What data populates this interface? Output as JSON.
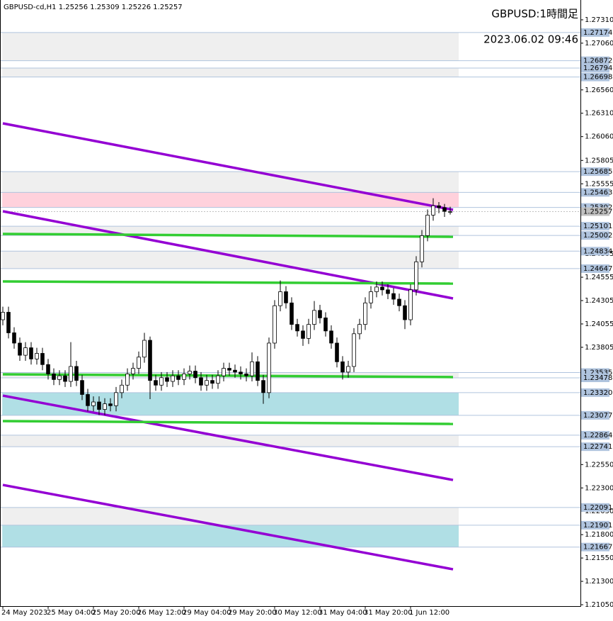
{
  "chart_data": {
    "type": "candlestick",
    "title": "GBPUSD-cd,H1  1.25256 1.25309 1.25226 1.25257",
    "annotations": [
      "GBPUSD:1時間足",
      "2023.06.02 09:46"
    ],
    "xlim": [
      -0.5,
      102
    ],
    "ylim": [
      1.21035,
      1.27522
    ],
    "xticks": [
      {
        "value": 0,
        "label": "24 May 2023"
      },
      {
        "value": 8,
        "label": "25 May 04:00"
      },
      {
        "value": 16,
        "label": "25 May 20:00"
      },
      {
        "value": 24,
        "label": "26 May 12:00"
      },
      {
        "value": 32,
        "label": "29 May 04:00"
      },
      {
        "value": 40,
        "label": "29 May 20:00"
      },
      {
        "value": 48,
        "label": "30 May 12:00"
      },
      {
        "value": 56,
        "label": "31 May 04:00"
      },
      {
        "value": 64,
        "label": "31 May 20:00"
      },
      {
        "value": 72,
        "label": "1 Jun 12:00"
      }
    ],
    "yticks": [
      {
        "value": 1.2731,
        "label": "1.27310"
      },
      {
        "value": 1.2706,
        "label": "1.27060"
      },
      {
        "value": 1.2656,
        "label": "1.26560"
      },
      {
        "value": 1.2631,
        "label": "1.26310"
      },
      {
        "value": 1.2606,
        "label": "1.26060"
      },
      {
        "value": 1.25805,
        "label": "1.25805"
      },
      {
        "value": 1.25555,
        "label": "1.25555"
      },
      {
        "value": 1.24805,
        "label": "1.24805"
      },
      {
        "value": 1.24555,
        "label": "1.24555"
      },
      {
        "value": 1.24305,
        "label": "1.24305"
      },
      {
        "value": 1.24055,
        "label": "1.24055"
      },
      {
        "value": 1.23805,
        "label": "1.23805"
      },
      {
        "value": 1.2255,
        "label": "1.22550"
      },
      {
        "value": 1.223,
        "label": "1.22300"
      },
      {
        "value": 1.2205,
        "label": "1.22050"
      },
      {
        "value": 1.218,
        "label": "1.21800"
      },
      {
        "value": 1.2155,
        "label": "1.21550"
      },
      {
        "value": 1.213,
        "label": "1.21300"
      },
      {
        "value": 1.2105,
        "label": "1.21050"
      }
    ],
    "levels": [
      {
        "value": 1.27174,
        "label": "1.27174"
      },
      {
        "value": 1.26872,
        "label": "1.26872"
      },
      {
        "value": 1.26794,
        "label": "1.26794"
      },
      {
        "value": 1.26698,
        "label": "1.26698"
      },
      {
        "value": 1.25685,
        "label": "1.25685"
      },
      {
        "value": 1.25463,
        "label": "1.25463"
      },
      {
        "value": 1.25302,
        "label": "1.25302"
      },
      {
        "value": 1.25101,
        "label": "1.25101"
      },
      {
        "value": 1.25002,
        "label": "1.25002"
      },
      {
        "value": 1.24834,
        "label": "1.24834"
      },
      {
        "value": 1.24647,
        "label": "1.24647"
      },
      {
        "value": 1.23535,
        "label": "1.23535"
      },
      {
        "value": 1.23478,
        "label": "1.23478"
      },
      {
        "value": 1.2332,
        "label": "1.23320"
      },
      {
        "value": 1.23077,
        "label": "1.23077"
      },
      {
        "value": 1.22864,
        "label": "1.22864"
      },
      {
        "value": 1.22741,
        "label": "1.22741"
      },
      {
        "value": 1.22091,
        "label": "1.22091"
      },
      {
        "value": 1.21901,
        "label": "1.21901"
      },
      {
        "value": 1.21667,
        "label": "1.21667"
      }
    ],
    "price": {
      "value": 1.25257,
      "label": "1.25257"
    },
    "zones": [
      {
        "from": 1.27174,
        "to": 1.26872,
        "color": "#efefef"
      },
      {
        "from": 1.26794,
        "to": 1.26698,
        "color": "#efefef"
      },
      {
        "from": 1.25685,
        "to": 1.25463,
        "color": "#efefef"
      },
      {
        "from": 1.25463,
        "to": 1.25302,
        "color": "#ffd1dc"
      },
      {
        "from": 1.25101,
        "to": 1.25002,
        "color": "#efefef"
      },
      {
        "from": 1.24834,
        "to": 1.24647,
        "color": "#efefef"
      },
      {
        "from": 1.23535,
        "to": 1.23478,
        "color": "#efefef"
      },
      {
        "from": 1.2332,
        "to": 1.23077,
        "color": "#b0dfe5"
      },
      {
        "from": 1.22864,
        "to": 1.22741,
        "color": "#efefef"
      },
      {
        "from": 1.22091,
        "to": 1.21901,
        "color": "#efefef"
      },
      {
        "from": 1.21901,
        "to": 1.21667,
        "color": "#b0dfe5"
      }
    ],
    "trendlines": [
      {
        "color": "#9400d3",
        "x": [
          0,
          79.5
        ],
        "y": [
          1.26202,
          1.25276
        ]
      },
      {
        "color": "#9400d3",
        "x": [
          0,
          79.5
        ],
        "y": [
          1.25261,
          1.24328
        ]
      },
      {
        "color": "#9400d3",
        "x": [
          0,
          79.5
        ],
        "y": [
          1.23288,
          1.22385
        ]
      },
      {
        "color": "#9400d3",
        "x": [
          0,
          79.5
        ],
        "y": [
          1.22332,
          1.21429
        ]
      },
      {
        "color": "#32cd32",
        "x": [
          0,
          79.5
        ],
        "y": [
          1.25018,
          1.24988
        ]
      },
      {
        "color": "#32cd32",
        "x": [
          0,
          79.5
        ],
        "y": [
          1.2451,
          1.24487
        ]
      },
      {
        "color": "#32cd32",
        "x": [
          0,
          79.5
        ],
        "y": [
          1.23516,
          1.23486
        ]
      },
      {
        "color": "#32cd32",
        "x": [
          0,
          79.5
        ],
        "y": [
          1.23015,
          1.22985
        ]
      }
    ],
    "candles": [
      [
        1.241,
        1.2424,
        1.2404,
        1.2418
      ],
      [
        1.2418,
        1.2424,
        1.239,
        1.2396
      ],
      [
        1.2396,
        1.2402,
        1.2379,
        1.2385
      ],
      [
        1.2385,
        1.2391,
        1.2366,
        1.2372
      ],
      [
        1.2372,
        1.2386,
        1.2366,
        1.238
      ],
      [
        1.238,
        1.2386,
        1.2362,
        1.2368
      ],
      [
        1.2368,
        1.238,
        1.2362,
        1.2374
      ],
      [
        1.2374,
        1.238,
        1.2356,
        1.2362
      ],
      [
        1.2362,
        1.2368,
        1.2346,
        1.2352
      ],
      [
        1.2352,
        1.2358,
        1.234,
        1.2346
      ],
      [
        1.2346,
        1.2356,
        1.234,
        1.235
      ],
      [
        1.235,
        1.2356,
        1.2338,
        1.2344
      ],
      [
        1.2344,
        1.2386,
        1.2338,
        1.236
      ],
      [
        1.236,
        1.2366,
        1.2339,
        1.2345
      ],
      [
        1.2345,
        1.2351,
        1.2324,
        1.233
      ],
      [
        1.233,
        1.2336,
        1.2312,
        1.2318
      ],
      [
        1.2318,
        1.2328,
        1.2312,
        1.2322
      ],
      [
        1.2322,
        1.2328,
        1.2308,
        1.2314
      ],
      [
        1.2314,
        1.2326,
        1.2308,
        1.232
      ],
      [
        1.232,
        1.2326,
        1.2312,
        1.2318
      ],
      [
        1.2318,
        1.2338,
        1.2312,
        1.2332
      ],
      [
        1.2332,
        1.2346,
        1.2326,
        1.234
      ],
      [
        1.234,
        1.2358,
        1.2334,
        1.2352
      ],
      [
        1.2352,
        1.2364,
        1.2346,
        1.2358
      ],
      [
        1.2358,
        1.2376,
        1.2352,
        1.237
      ],
      [
        1.237,
        1.2396,
        1.2364,
        1.2388
      ],
      [
        1.2388,
        1.2392,
        1.2325,
        1.2345
      ],
      [
        1.2345,
        1.2351,
        1.2334,
        1.234
      ],
      [
        1.234,
        1.2354,
        1.2334,
        1.2348
      ],
      [
        1.2348,
        1.2354,
        1.2338,
        1.2344
      ],
      [
        1.2344,
        1.2356,
        1.2338,
        1.235
      ],
      [
        1.235,
        1.2356,
        1.234,
        1.2346
      ],
      [
        1.2346,
        1.2358,
        1.234,
        1.2352
      ],
      [
        1.2352,
        1.2361,
        1.2346,
        1.2355
      ],
      [
        1.2355,
        1.2361,
        1.2342,
        1.2348
      ],
      [
        1.2348,
        1.2354,
        1.2334,
        1.234
      ],
      [
        1.234,
        1.2351,
        1.2334,
        1.2345
      ],
      [
        1.2345,
        1.2351,
        1.2336,
        1.2342
      ],
      [
        1.2342,
        1.2356,
        1.2336,
        1.235
      ],
      [
        1.235,
        1.2364,
        1.2344,
        1.2358
      ],
      [
        1.2358,
        1.2364,
        1.235,
        1.2356
      ],
      [
        1.2356,
        1.2362,
        1.2348,
        1.2354
      ],
      [
        1.2354,
        1.236,
        1.2346,
        1.2352
      ],
      [
        1.2352,
        1.2358,
        1.2344,
        1.235
      ],
      [
        1.235,
        1.2375,
        1.2344,
        1.2365
      ],
      [
        1.2365,
        1.2371,
        1.2339,
        1.2345
      ],
      [
        1.2345,
        1.2351,
        1.232,
        1.2332
      ],
      [
        1.2332,
        1.2391,
        1.2326,
        1.2385
      ],
      [
        1.2385,
        1.2431,
        1.2379,
        1.2425
      ],
      [
        1.2425,
        1.2452,
        1.2419,
        1.244
      ],
      [
        1.244,
        1.2446,
        1.2422,
        1.2428
      ],
      [
        1.2428,
        1.2434,
        1.2399,
        1.2405
      ],
      [
        1.2405,
        1.2411,
        1.2392,
        1.2398
      ],
      [
        1.2398,
        1.2404,
        1.2382,
        1.239
      ],
      [
        1.239,
        1.2411,
        1.2384,
        1.2405
      ],
      [
        1.2405,
        1.243,
        1.2399,
        1.242
      ],
      [
        1.242,
        1.2426,
        1.2406,
        1.2412
      ],
      [
        1.2412,
        1.2418,
        1.2392,
        1.2398
      ],
      [
        1.2398,
        1.2404,
        1.2379,
        1.2385
      ],
      [
        1.2385,
        1.2391,
        1.2359,
        1.2365
      ],
      [
        1.2365,
        1.2371,
        1.2346,
        1.2354
      ],
      [
        1.2354,
        1.2366,
        1.2348,
        1.236
      ],
      [
        1.236,
        1.2401,
        1.2354,
        1.2395
      ],
      [
        1.2395,
        1.2411,
        1.2389,
        1.2405
      ],
      [
        1.2405,
        1.2434,
        1.2399,
        1.2428
      ],
      [
        1.2428,
        1.2446,
        1.2422,
        1.244
      ],
      [
        1.244,
        1.2451,
        1.2434,
        1.2445
      ],
      [
        1.2445,
        1.2451,
        1.2436,
        1.2442
      ],
      [
        1.2442,
        1.2448,
        1.2432,
        1.2438
      ],
      [
        1.2438,
        1.2444,
        1.2426,
        1.2432
      ],
      [
        1.2432,
        1.2438,
        1.2419,
        1.2425
      ],
      [
        1.2425,
        1.2431,
        1.24,
        1.241
      ],
      [
        1.241,
        1.2448,
        1.2404,
        1.2442
      ],
      [
        1.2442,
        1.2478,
        1.2436,
        1.2472
      ],
      [
        1.2472,
        1.2506,
        1.2466,
        1.25
      ],
      [
        1.25,
        1.2528,
        1.2494,
        1.2522
      ],
      [
        1.2522,
        1.254,
        1.2516,
        1.2532
      ],
      [
        1.2532,
        1.2536,
        1.2524,
        1.253
      ],
      [
        1.253,
        1.2534,
        1.252,
        1.2526
      ],
      [
        1.25256,
        1.25309,
        1.25226,
        1.25257
      ]
    ]
  }
}
